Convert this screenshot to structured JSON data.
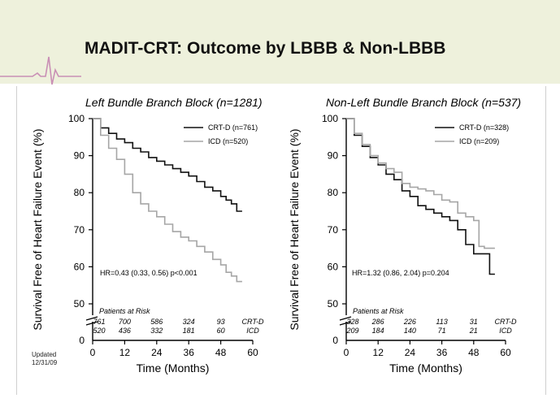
{
  "slide": {
    "title": "MADIT-CRT: Outcome by LBBB & Non-LBBB",
    "accent_color": "#c98fb5",
    "header_bg": "#eef1dc"
  },
  "footnote": [
    "Updated",
    "12/31/09"
  ],
  "chart_data": [
    {
      "type": "line",
      "title": "Left Bundle Branch Block (n=1281)",
      "xlabel": "Time (Months)",
      "ylabel": "Survival Free of Heart Failure Event (%)",
      "xlim": [
        0,
        60
      ],
      "ylim": [
        50,
        100
      ],
      "x_ticks": [
        0,
        12,
        24,
        36,
        48,
        60
      ],
      "y_ticks": [
        100,
        90,
        80,
        70,
        60,
        50
      ],
      "y_zero_label": "0",
      "series": [
        {
          "name": "CRT-D (n=761)",
          "color": "#111111",
          "x": [
            0,
            3,
            6,
            9,
            12,
            15,
            18,
            21,
            24,
            27,
            30,
            33,
            36,
            39,
            42,
            45,
            48,
            50,
            52,
            54,
            56
          ],
          "y": [
            100,
            97.5,
            96,
            94.5,
            93.5,
            92,
            91,
            89.5,
            88.5,
            87.5,
            86.5,
            85.5,
            84.5,
            83,
            81.5,
            80.5,
            79,
            78,
            77,
            75,
            75
          ]
        },
        {
          "name": "ICD (n=520)",
          "color": "#a6a6a6",
          "x": [
            0,
            3,
            6,
            9,
            12,
            15,
            18,
            21,
            24,
            27,
            30,
            33,
            36,
            39,
            42,
            45,
            48,
            50,
            52,
            54,
            56
          ],
          "y": [
            100,
            95.5,
            92,
            89,
            85,
            80,
            77,
            75,
            73.5,
            71.5,
            69.5,
            68,
            67,
            65.5,
            64,
            62,
            60.5,
            58.5,
            57.5,
            56,
            56
          ]
        }
      ],
      "annotation": "HR=0.43 (0.33, 0.56)  p<0.001",
      "risk_table": {
        "header": "Patients at Risk",
        "rows": [
          {
            "label": "CRT-D",
            "values": [
              "761",
              "700",
              "586",
              "324",
              "93"
            ]
          },
          {
            "label": "ICD",
            "values": [
              "520",
              "436",
              "332",
              "181",
              "60"
            ]
          }
        ]
      }
    },
    {
      "type": "line",
      "title": "Non-Left Bundle Branch Block (n=537)",
      "xlabel": "Time (Months)",
      "ylabel": "Survival Free of Heart Failure Event (%)",
      "xlim": [
        0,
        60
      ],
      "ylim": [
        50,
        100
      ],
      "x_ticks": [
        0,
        12,
        24,
        36,
        48,
        60
      ],
      "y_ticks": [
        100,
        90,
        80,
        70,
        60,
        50
      ],
      "y_zero_label": "0",
      "series": [
        {
          "name": "CRT-D (n=328)",
          "color": "#111111",
          "x": [
            0,
            3,
            6,
            9,
            12,
            15,
            18,
            21,
            24,
            27,
            30,
            33,
            36,
            39,
            42,
            45,
            48,
            52,
            54,
            56
          ],
          "y": [
            100,
            95.5,
            92.5,
            89.5,
            87.5,
            85,
            83.5,
            80.5,
            79,
            76.5,
            75.5,
            74.5,
            73.5,
            72.5,
            70,
            66,
            63.5,
            63.5,
            58,
            58
          ]
        },
        {
          "name": "ICD (n=209)",
          "color": "#a6a6a6",
          "x": [
            0,
            3,
            6,
            9,
            12,
            15,
            18,
            21,
            24,
            27,
            30,
            33,
            36,
            39,
            42,
            45,
            48,
            50,
            52,
            54,
            56
          ],
          "y": [
            100,
            96,
            93,
            90,
            88,
            86.5,
            85.5,
            82.5,
            81.5,
            81,
            80.5,
            79.5,
            78,
            77.5,
            74.5,
            73.5,
            72.5,
            65.5,
            65,
            65,
            65
          ]
        }
      ],
      "annotation": "HR=1.32 (0.86, 2.04)  p=0.204",
      "risk_table": {
        "header": "Patients at Risk",
        "rows": [
          {
            "label": "CRT-D",
            "values": [
              "328",
              "286",
              "226",
              "113",
              "31"
            ]
          },
          {
            "label": "ICD",
            "values": [
              "209",
              "184",
              "140",
              "71",
              "21"
            ]
          }
        ]
      }
    }
  ]
}
